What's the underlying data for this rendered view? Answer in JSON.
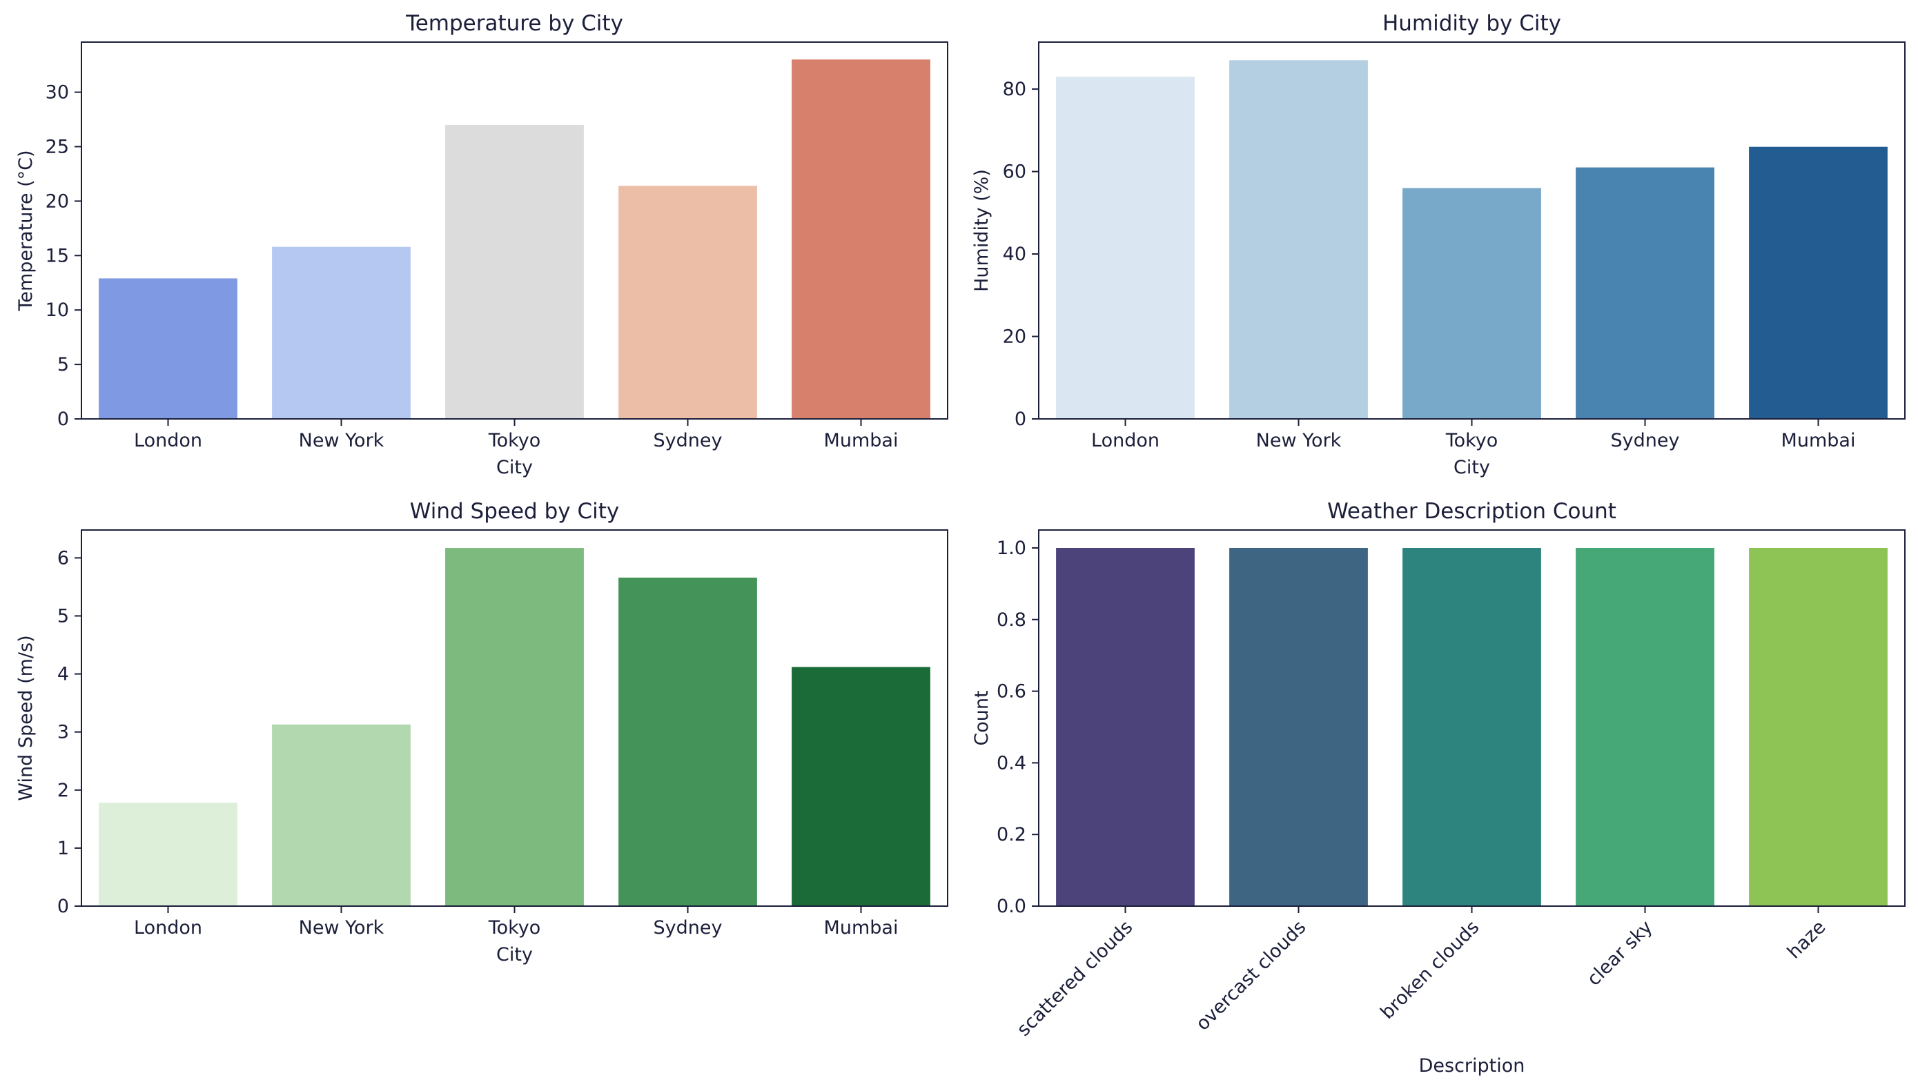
{
  "chart_data": [
    {
      "type": "bar",
      "title": "Temperature by City",
      "xlabel": "City",
      "ylabel": "Temperature (°C)",
      "categories": [
        "London",
        "New York",
        "Tokyo",
        "Sydney",
        "Mumbai"
      ],
      "values": [
        12.9,
        15.8,
        27.0,
        21.4,
        33.0
      ],
      "colors": [
        "#7f9ae3",
        "#b4c8f2",
        "#dcdcdc",
        "#ecbda7",
        "#d7806b"
      ],
      "ylim": [
        0,
        34.6
      ],
      "yticks": [
        0,
        5,
        10,
        15,
        20,
        25,
        30
      ],
      "ytick_labels": [
        "0",
        "5",
        "10",
        "15",
        "20",
        "25",
        "30"
      ],
      "grid": false
    },
    {
      "type": "bar",
      "title": "Humidity by City",
      "xlabel": "City",
      "ylabel": "Humidity (%)",
      "categories": [
        "London",
        "New York",
        "Tokyo",
        "Sydney",
        "Mumbai"
      ],
      "values": [
        83,
        87,
        56,
        61,
        66
      ],
      "colors": [
        "#dae6f2",
        "#b3cfe1",
        "#79a9c9",
        "#4983b0",
        "#235c90"
      ],
      "ylim": [
        0,
        91.4
      ],
      "yticks": [
        0,
        20,
        40,
        60,
        80
      ],
      "ytick_labels": [
        "0",
        "20",
        "40",
        "60",
        "80"
      ],
      "grid": false
    },
    {
      "type": "bar",
      "title": "Wind Speed by City",
      "xlabel": "City",
      "ylabel": "Wind Speed (m/s)",
      "categories": [
        "London",
        "New York",
        "Tokyo",
        "Sydney",
        "Mumbai"
      ],
      "values": [
        1.78,
        3.13,
        6.17,
        5.66,
        4.12
      ],
      "colors": [
        "#ddeed9",
        "#b2d8af",
        "#7cba7e",
        "#44945a",
        "#1a6b37"
      ],
      "ylim": [
        0,
        6.48
      ],
      "yticks": [
        0,
        1,
        2,
        3,
        4,
        5,
        6
      ],
      "ytick_labels": [
        "0",
        "1",
        "2",
        "3",
        "4",
        "5",
        "6"
      ],
      "grid": false
    },
    {
      "type": "bar",
      "title": "Weather Description Count",
      "xlabel": "Description",
      "ylabel": "Count",
      "categories": [
        "scattered clouds",
        "overcast clouds",
        "broken clouds",
        "clear sky",
        "haze"
      ],
      "values": [
        1,
        1,
        1,
        1,
        1
      ],
      "colors": [
        "#4b4379",
        "#3e6682",
        "#2d847e",
        "#46a876",
        "#8ec456"
      ],
      "ylim": [
        0,
        1.05
      ],
      "yticks": [
        0,
        0.2,
        0.4,
        0.6,
        0.8,
        1.0
      ],
      "ytick_labels": [
        "0.0",
        "0.2",
        "0.4",
        "0.6",
        "0.8",
        "1.0"
      ],
      "xtick_rotation": 45,
      "grid": false
    }
  ]
}
